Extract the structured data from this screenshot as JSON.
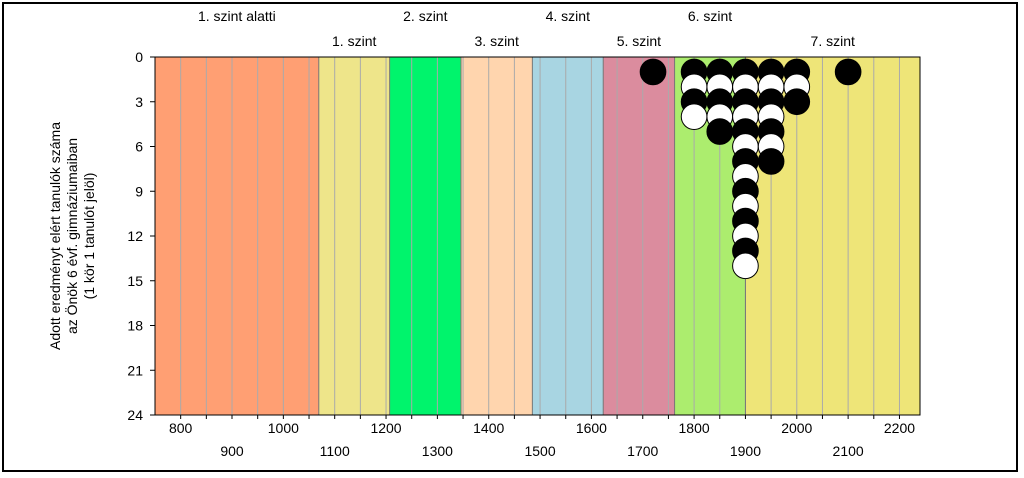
{
  "chart_data": {
    "type": "scatter",
    "ylabel_lines": [
      "Adott eredményt elért tanulók száma",
      "az Önök 6 évf. gimnáziumaiban",
      "(1 kör 1 tanulót jelöl)"
    ],
    "xlim": [
      750,
      2240
    ],
    "ylim": [
      0,
      24
    ],
    "y_ticks": [
      0,
      3,
      6,
      9,
      12,
      15,
      18,
      21,
      24
    ],
    "x_ticks_lower_row": [
      800,
      1000,
      1200,
      1400,
      1600,
      1800,
      2000,
      2200
    ],
    "x_ticks_upper_row": [
      900,
      1100,
      1300,
      1500,
      1700,
      1900,
      2100
    ],
    "x_minor_step": 50,
    "grid": true,
    "levels": [
      {
        "label": "1. szint alatti",
        "from": 750,
        "to": 1069,
        "color": "#ff9f73",
        "row": "top"
      },
      {
        "label": "1. szint",
        "from": 1069,
        "to": 1207,
        "color": "#eee58a",
        "row": "bottom"
      },
      {
        "label": "2. szint",
        "from": 1207,
        "to": 1346,
        "color": "#00f46c",
        "row": "top"
      },
      {
        "label": "3. szint",
        "from": 1346,
        "to": 1485,
        "color": "#ffd5ae",
        "row": "bottom"
      },
      {
        "label": "4. szint",
        "from": 1485,
        "to": 1623,
        "color": "#a8d5e2",
        "row": "top"
      },
      {
        "label": "5. szint",
        "from": 1623,
        "to": 1762,
        "color": "#db8c9e",
        "row": "bottom"
      },
      {
        "label": "6. szint",
        "from": 1762,
        "to": 1900,
        "color": "#aced6e",
        "row": "top"
      },
      {
        "label": "7. szint",
        "from": 1900,
        "to": 2240,
        "color": "#eee578",
        "row": "bottom"
      }
    ],
    "series": [
      {
        "x": 1720,
        "fills": [
          "black"
        ]
      },
      {
        "x": 1800,
        "fills": [
          "black",
          "white",
          "black",
          "white"
        ]
      },
      {
        "x": 1850,
        "fills": [
          "black",
          "white",
          "black",
          "white",
          "black"
        ]
      },
      {
        "x": 1900,
        "fills": [
          "black",
          "white",
          "black",
          "white",
          "black",
          "white",
          "black",
          "white",
          "black",
          "white",
          "black",
          "white",
          "black",
          "white"
        ]
      },
      {
        "x": 1950,
        "fills": [
          "black",
          "white",
          "black",
          "white",
          "black",
          "white",
          "black"
        ]
      },
      {
        "x": 2000,
        "fills": [
          "black",
          "white",
          "black"
        ]
      },
      {
        "x": 2100,
        "fills": [
          "black"
        ]
      }
    ]
  }
}
